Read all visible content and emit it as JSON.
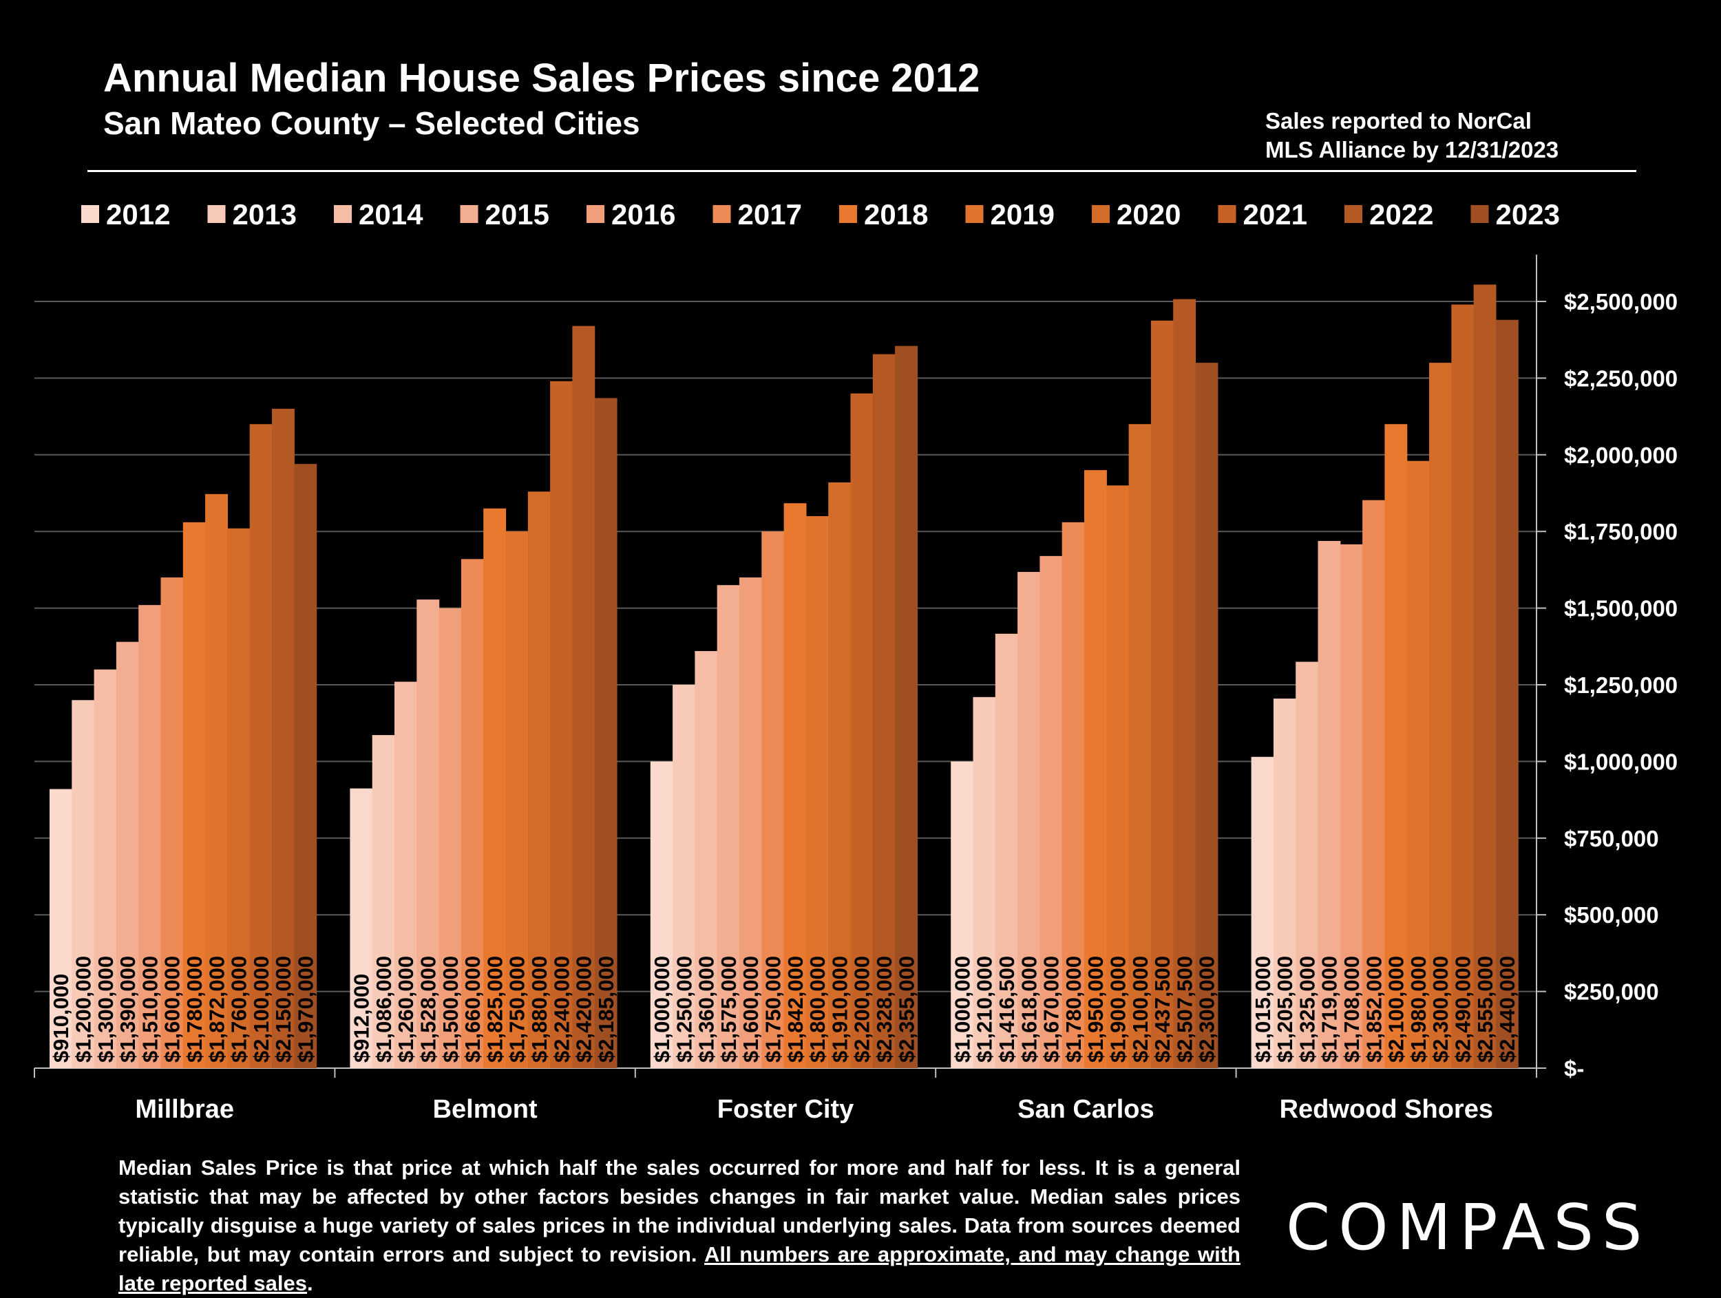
{
  "header": {
    "title": "Annual Median House Sales Prices since 2012",
    "subtitle": "San Mateo County – Selected Cities",
    "source_note_line1": "Sales reported to NorCal",
    "source_note_line2": "MLS Alliance by 12/31/2023"
  },
  "chart_data": {
    "type": "bar",
    "categories": [
      "Millbrae",
      "Belmont",
      "Foster City",
      "San Carlos",
      "Redwood Shores"
    ],
    "series": [
      {
        "name": "2012",
        "color": "#fbd9cd",
        "values": [
          910000,
          912000,
          1000000,
          1000000,
          1015000
        ]
      },
      {
        "name": "2013",
        "color": "#f8cbb9",
        "values": [
          1200000,
          1086000,
          1250000,
          1210000,
          1205000
        ]
      },
      {
        "name": "2014",
        "color": "#f5bda6",
        "values": [
          1300000,
          1260000,
          1360000,
          1416500,
          1325000
        ]
      },
      {
        "name": "2015",
        "color": "#f3ae92",
        "values": [
          1390000,
          1528000,
          1575000,
          1618000,
          1719000
        ]
      },
      {
        "name": "2016",
        "color": "#f19e7a",
        "values": [
          1510000,
          1500000,
          1600000,
          1670000,
          1708000
        ]
      },
      {
        "name": "2017",
        "color": "#ee8a55",
        "values": [
          1600000,
          1660000,
          1750000,
          1780000,
          1852000
        ]
      },
      {
        "name": "2018",
        "color": "#e9792f",
        "values": [
          1780000,
          1825000,
          1842000,
          1950000,
          2100000
        ]
      },
      {
        "name": "2019",
        "color": "#e0742c",
        "values": [
          1872000,
          1750000,
          1800000,
          1900000,
          1980000
        ]
      },
      {
        "name": "2020",
        "color": "#d46c29",
        "values": [
          1760000,
          1880000,
          1910000,
          2100000,
          2300000
        ]
      },
      {
        "name": "2021",
        "color": "#c66226",
        "values": [
          2100000,
          2240000,
          2200000,
          2437500,
          2490000
        ]
      },
      {
        "name": "2022",
        "color": "#b45924",
        "values": [
          2150000,
          2420000,
          2328000,
          2507500,
          2555000
        ]
      },
      {
        "name": "2023",
        "color": "#a04f22",
        "values": [
          1970000,
          2185000,
          2355000,
          2300000,
          2440000
        ]
      }
    ],
    "data_labels": [
      [
        "$910,000",
        "$912,000",
        "$1,000,000",
        "$1,000,000",
        "$1,015,000"
      ],
      [
        "$1,200,000",
        "$1,086,000",
        "$1,250,000",
        "$1,210,000",
        "$1,205,000"
      ],
      [
        "$1,300,000",
        "$1,260,000",
        "$1,360,000",
        "$1,416,500",
        "$1,325,000"
      ],
      [
        "$1,390,000",
        "$1,528,000",
        "$1,575,000",
        "$1,618,000",
        "$1,719,000"
      ],
      [
        "$1,510,000",
        "$1,500,000",
        "$1,600,000",
        "$1,670,000",
        "$1,708,000"
      ],
      [
        "$1,600,000",
        "$1,660,000",
        "$1,750,000",
        "$1,780,000",
        "$1,852,000"
      ],
      [
        "$1,780,000",
        "$1,825,000",
        "$1,842,000",
        "$1,950,000",
        "$2,100,000"
      ],
      [
        "$1,872,000",
        "$1,750,000",
        "$1,800,000",
        "$1,900,000",
        "$1,980,000"
      ],
      [
        "$1,760,000",
        "$1,880,000",
        "$1,910,000",
        "$2,100,000",
        "$2,300,000"
      ],
      [
        "$2,100,000",
        "$2,240,000",
        "$2,200,000",
        "$2,437,500",
        "$2,490,000"
      ],
      [
        "$2,150,000",
        "$2,420,000",
        "$2,328,000",
        "$2,507,500",
        "$2,555,000"
      ],
      [
        "$1,970,000",
        "$2,185,000",
        "$2,355,000",
        "$2,300,000",
        "$2,440,000"
      ]
    ],
    "ylim": [
      0,
      2500000
    ],
    "yticks": [
      0,
      250000,
      500000,
      750000,
      1000000,
      1250000,
      1500000,
      1750000,
      2000000,
      2250000,
      2500000
    ],
    "ytick_labels": [
      "$-",
      "$250,000",
      "$500,000",
      "$750,000",
      "$1,000,000",
      "$1,250,000",
      "$1,500,000",
      "$1,750,000",
      "$2,000,000",
      "$2,250,000",
      "$2,500,000"
    ],
    "y_axis_side": "right",
    "grid": true,
    "legend_position": "top"
  },
  "footer": {
    "footnote_text": "Median Sales Price is that price at which half the sales occurred for more and half for less. It is a general statistic that may be affected by other factors besides changes in fair market value. Median sales prices typically disguise a huge variety of sales prices in the individual underlying sales. Data from sources deemed reliable, but may contain errors and subject to revision. ",
    "footnote_underlined": "All numbers are approximate, and may change with late reported sales",
    "footnote_end": ".",
    "logo": "COMPASS"
  }
}
